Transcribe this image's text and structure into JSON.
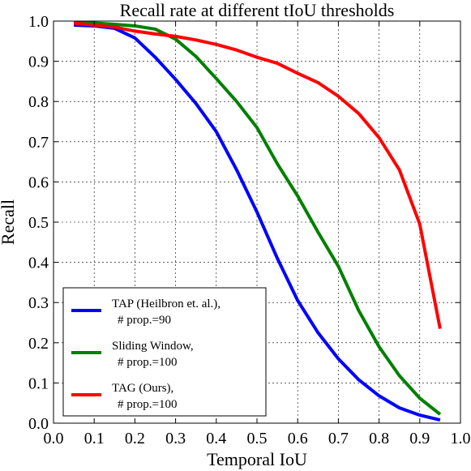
{
  "chart_data": {
    "type": "line",
    "title": "Recall rate at different tIoU thresholds",
    "xlabel": "Temporal IoU",
    "ylabel": "Recall",
    "xlim": [
      0.0,
      1.0
    ],
    "ylim": [
      0.0,
      1.0
    ],
    "xticks": [
      "0.0",
      "0.1",
      "0.2",
      "0.3",
      "0.4",
      "0.5",
      "0.6",
      "0.7",
      "0.8",
      "0.9",
      "1.0"
    ],
    "yticks": [
      "0.0",
      "0.1",
      "0.2",
      "0.3",
      "0.4",
      "0.5",
      "0.6",
      "0.7",
      "0.8",
      "0.9",
      "1.0"
    ],
    "grid": true,
    "legend_position": "lower-left",
    "x": [
      0.05,
      0.1,
      0.15,
      0.2,
      0.25,
      0.3,
      0.35,
      0.4,
      0.45,
      0.5,
      0.55,
      0.6,
      0.65,
      0.7,
      0.75,
      0.8,
      0.85,
      0.9,
      0.95
    ],
    "series": [
      {
        "name": "TAP (Heilbron et. al.),",
        "name_line2": "# prop.=90",
        "color": "#0000ff",
        "values": [
          0.99,
          0.988,
          0.982,
          0.958,
          0.91,
          0.855,
          0.795,
          0.725,
          0.63,
          0.525,
          0.41,
          0.305,
          0.225,
          0.16,
          0.108,
          0.068,
          0.038,
          0.02,
          0.008
        ]
      },
      {
        "name": "Sliding Window,",
        "name_line2": "# prop.=100",
        "color": "#008000",
        "values": [
          0.997,
          0.995,
          0.992,
          0.988,
          0.98,
          0.955,
          0.912,
          0.857,
          0.8,
          0.735,
          0.645,
          0.565,
          0.475,
          0.39,
          0.28,
          0.19,
          0.118,
          0.062,
          0.022
        ]
      },
      {
        "name": "TAG (Ours),",
        "name_line2": "# prop.=100",
        "color": "#ff0000",
        "values": [
          0.995,
          0.99,
          0.985,
          0.975,
          0.968,
          0.962,
          0.953,
          0.942,
          0.928,
          0.91,
          0.895,
          0.87,
          0.847,
          0.813,
          0.77,
          0.71,
          0.63,
          0.495,
          0.235
        ]
      }
    ]
  }
}
